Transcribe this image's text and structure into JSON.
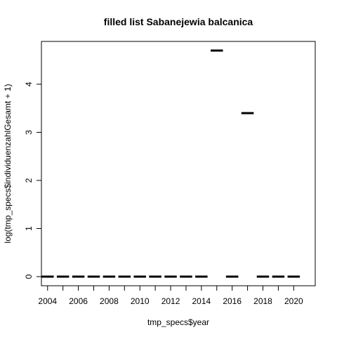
{
  "chart_data": {
    "type": "box",
    "title": "filled list Sabanejewia balcanica",
    "xlabel": "tmp_specs$year",
    "ylabel": "log(tmp_specs$individuenzahlGesamt + 1)",
    "categories": [
      "2004",
      "2005",
      "2006",
      "2007",
      "2008",
      "2009",
      "2010",
      "2011",
      "2012",
      "2013",
      "2014",
      "2015",
      "2016",
      "2017",
      "2018",
      "2019",
      "2020"
    ],
    "x_tick_labels": [
      "2004",
      "2006",
      "2008",
      "2010",
      "2012",
      "2014",
      "2016",
      "2018",
      "2020"
    ],
    "values": [
      0,
      0,
      0,
      0,
      0,
      0,
      0,
      0,
      0,
      0,
      0,
      4.7,
      0,
      3.4,
      0,
      0,
      0
    ],
    "yticks": [
      0,
      1,
      2,
      3,
      4
    ],
    "ylim": [
      -0.19,
      4.89
    ],
    "grid": false,
    "legend": "none"
  }
}
